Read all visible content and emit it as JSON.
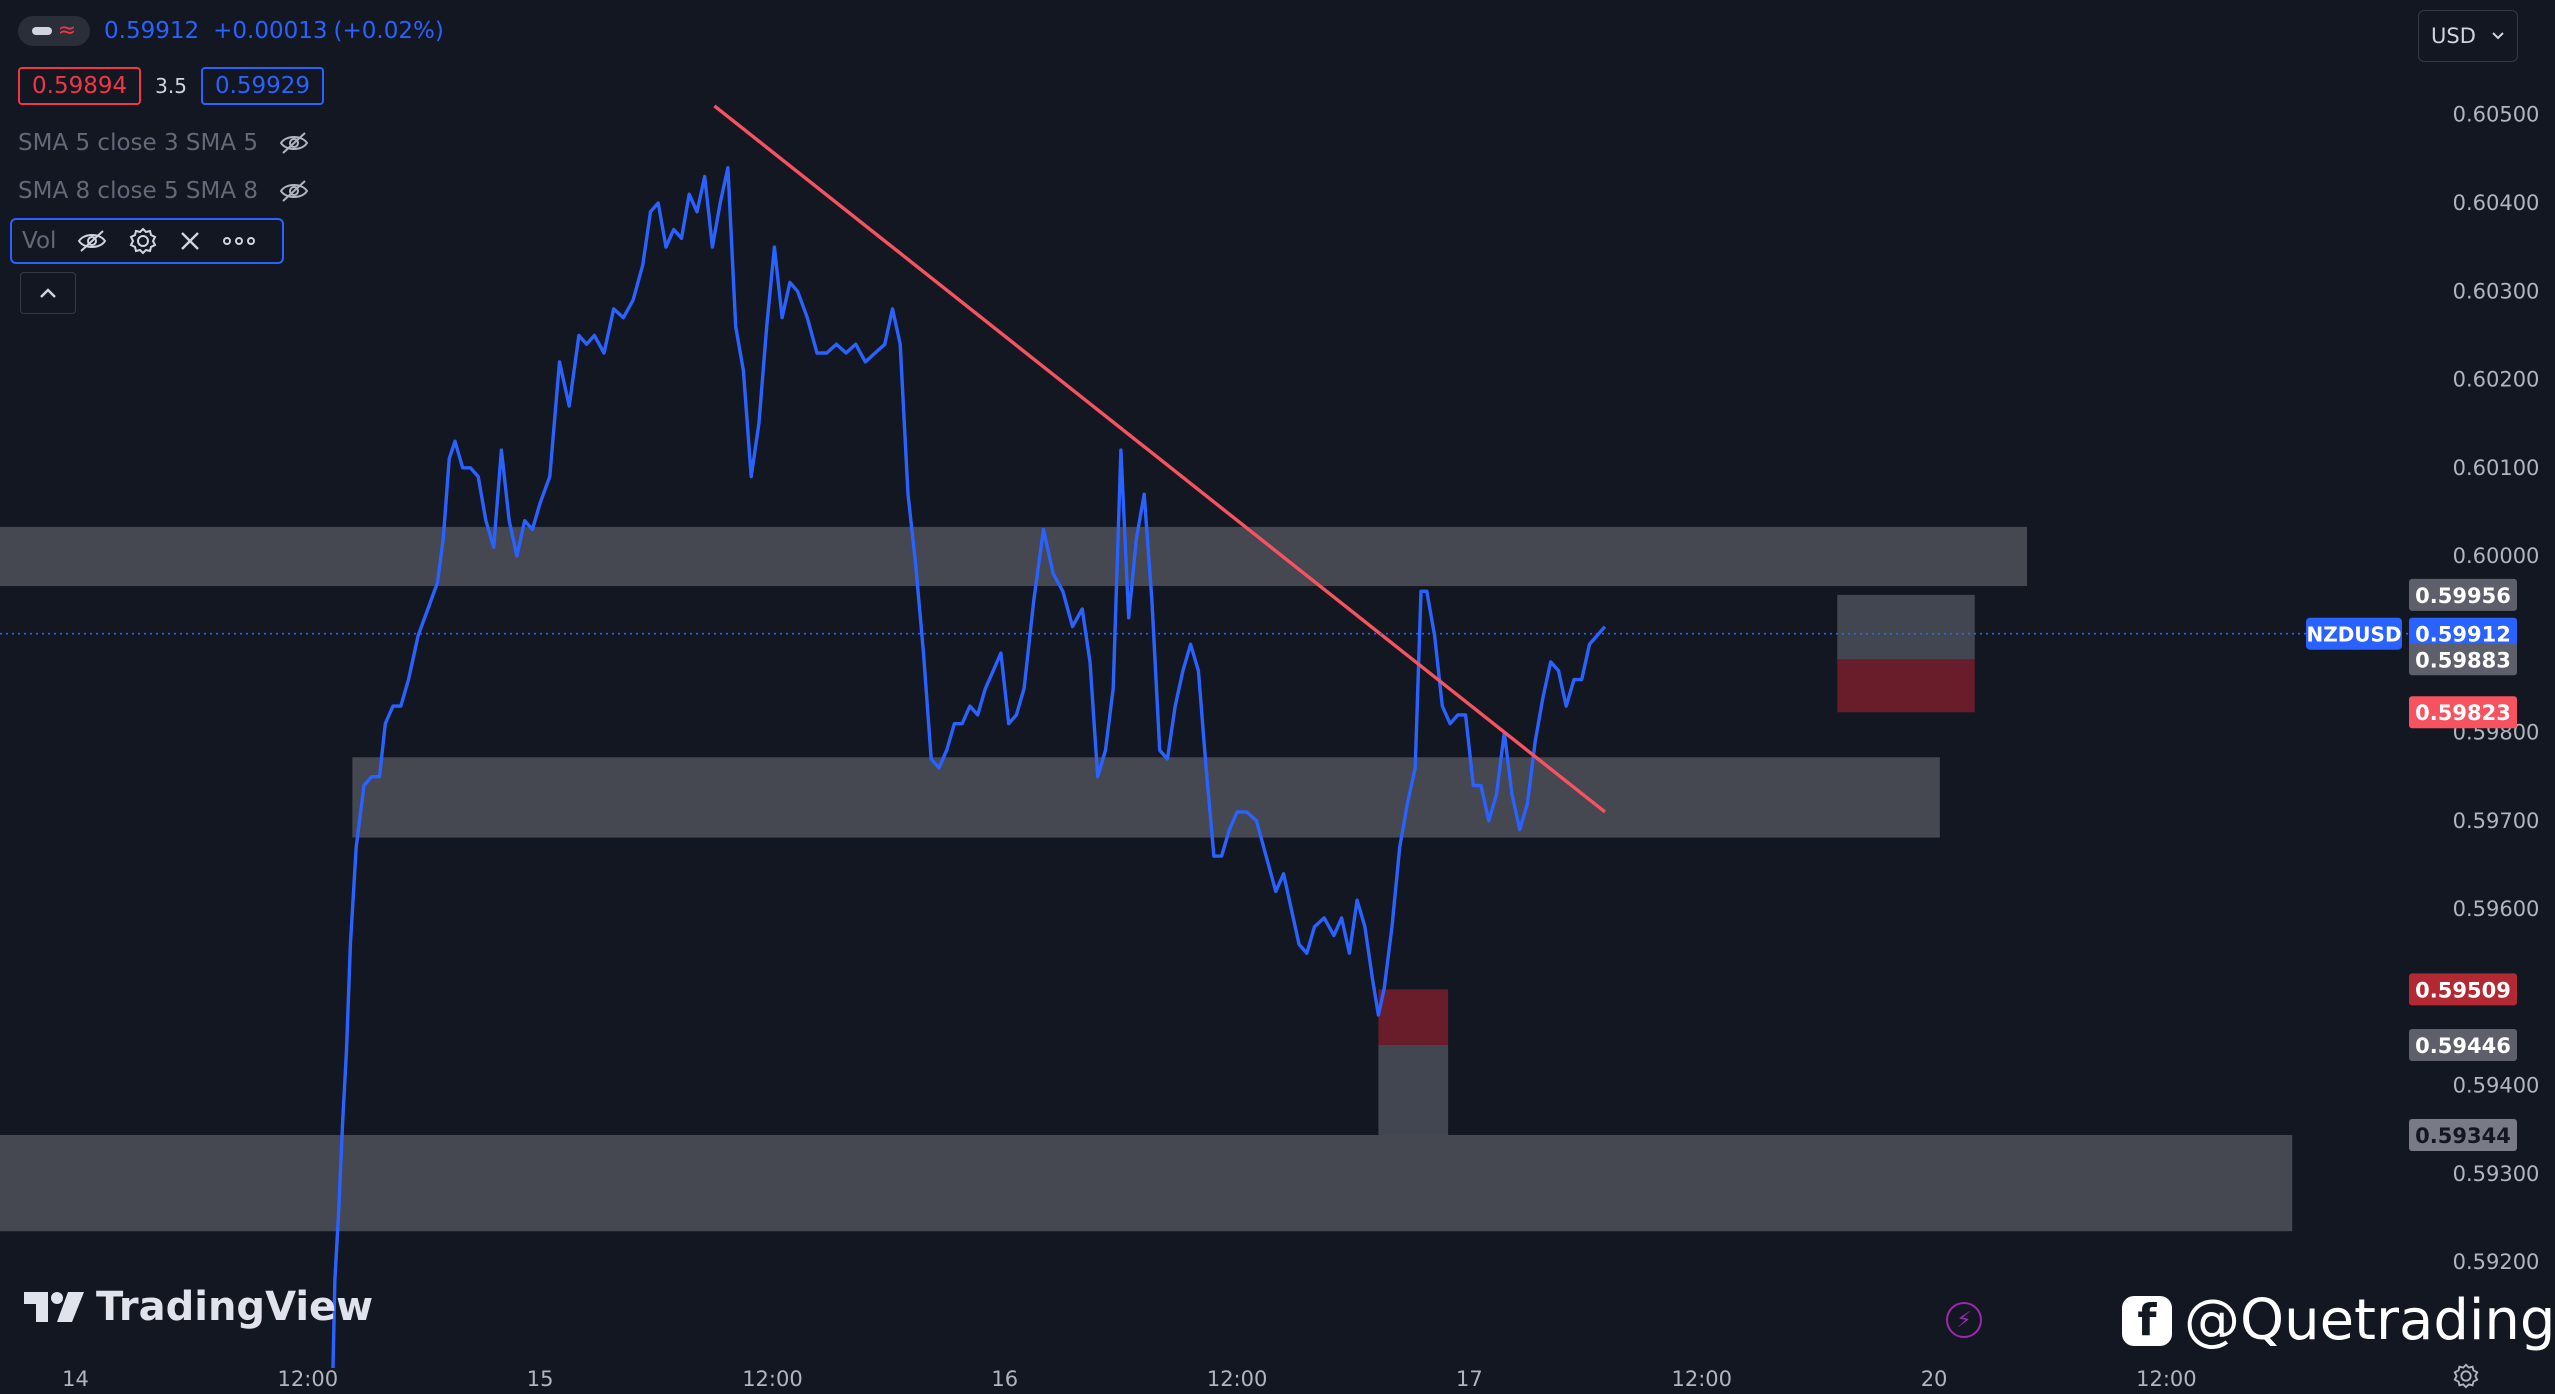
{
  "header": {
    "price": "0.59912",
    "change": "+0.00013",
    "change_pct": "(+0.02%)",
    "bid": "0.59894",
    "spread": "3.5",
    "ask": "0.59929"
  },
  "indicators": [
    {
      "label": "SMA 5 close 3 SMA 5",
      "icon": "eye-off-icon"
    },
    {
      "label": "SMA 8 close 5 SMA 8",
      "icon": "eye-off-icon"
    }
  ],
  "volume": {
    "label": "Vol"
  },
  "currency_selector": {
    "value": "USD"
  },
  "branding": {
    "logo_text": "TradingView",
    "watermark": "@Quetrading"
  },
  "colors": {
    "background": "#131722",
    "line": "#2962ff",
    "trendline": "#f7525f",
    "zone": "#4a4c56",
    "bid": "#f23645",
    "ask": "#2962ff"
  },
  "chart_data": {
    "type": "line",
    "symbol": "NZDUSD",
    "y_ticks": [
      "0.60500",
      "0.60400",
      "0.60300",
      "0.60200",
      "0.60100",
      "0.60000",
      "0.59800",
      "0.59700",
      "0.59600",
      "0.59400",
      "0.59300",
      "0.59200"
    ],
    "y_tick_values": [
      0.605,
      0.604,
      0.603,
      0.602,
      0.601,
      0.6,
      0.598,
      0.597,
      0.596,
      0.594,
      0.593,
      0.592
    ],
    "ylim": [
      0.5908,
      0.6063
    ],
    "x_ticks": [
      {
        "label": "14",
        "t": 0
      },
      {
        "label": "12:00",
        "t": 12
      },
      {
        "label": "15",
        "t": 24
      },
      {
        "label": "12:00",
        "t": 36
      },
      {
        "label": "16",
        "t": 48
      },
      {
        "label": "12:00",
        "t": 60
      },
      {
        "label": "17",
        "t": 72
      },
      {
        "label": "12:00",
        "t": 84
      },
      {
        "label": "20",
        "t": 96
      },
      {
        "label": "12:00",
        "t": 108
      }
    ],
    "xlim": [
      -3.9,
      121.1
    ],
    "series": [
      {
        "values": [
          [
            13.3,
            0.5908
          ],
          [
            13.4,
            0.5918
          ],
          [
            13.6,
            0.5926
          ],
          [
            13.8,
            0.5936
          ],
          [
            14.0,
            0.5944
          ],
          [
            14.2,
            0.5956
          ],
          [
            14.5,
            0.5967
          ],
          [
            14.9,
            0.5974
          ],
          [
            15.3,
            0.5975
          ],
          [
            15.7,
            0.5975
          ],
          [
            16.0,
            0.5981
          ],
          [
            16.4,
            0.5983
          ],
          [
            16.8,
            0.5983
          ],
          [
            17.2,
            0.5986
          ],
          [
            17.7,
            0.5991
          ],
          [
            18.2,
            0.5994
          ],
          [
            18.7,
            0.5997
          ],
          [
            19.0,
            0.6002
          ],
          [
            19.3,
            0.6011
          ],
          [
            19.6,
            0.6013
          ],
          [
            20.0,
            0.601
          ],
          [
            20.4,
            0.601
          ],
          [
            20.8,
            0.6009
          ],
          [
            21.2,
            0.6004
          ],
          [
            21.6,
            0.6001
          ],
          [
            22.0,
            0.6012
          ],
          [
            22.4,
            0.6004
          ],
          [
            22.8,
            0.6
          ],
          [
            23.2,
            0.6004
          ],
          [
            23.6,
            0.6003
          ],
          [
            24.0,
            0.6006
          ],
          [
            24.5,
            0.6009
          ],
          [
            25.0,
            0.6022
          ],
          [
            25.5,
            0.6017
          ],
          [
            26.0,
            0.6025
          ],
          [
            26.4,
            0.6024
          ],
          [
            26.8,
            0.6025
          ],
          [
            27.3,
            0.6023
          ],
          [
            27.8,
            0.6028
          ],
          [
            28.3,
            0.6027
          ],
          [
            28.8,
            0.6029
          ],
          [
            29.3,
            0.6033
          ],
          [
            29.7,
            0.6039
          ],
          [
            30.1,
            0.604
          ],
          [
            30.5,
            0.6035
          ],
          [
            30.9,
            0.6037
          ],
          [
            31.3,
            0.6036
          ],
          [
            31.7,
            0.6041
          ],
          [
            32.1,
            0.6039
          ],
          [
            32.5,
            0.6043
          ],
          [
            32.9,
            0.6035
          ],
          [
            33.3,
            0.604
          ],
          [
            33.7,
            0.6044
          ],
          [
            34.1,
            0.6026
          ],
          [
            34.5,
            0.6021
          ],
          [
            34.9,
            0.6009
          ],
          [
            35.3,
            0.6015
          ],
          [
            35.7,
            0.6026
          ],
          [
            36.1,
            0.6035
          ],
          [
            36.5,
            0.6027
          ],
          [
            36.9,
            0.6031
          ],
          [
            37.3,
            0.603
          ],
          [
            37.8,
            0.6027
          ],
          [
            38.3,
            0.6023
          ],
          [
            38.8,
            0.6023
          ],
          [
            39.3,
            0.6024
          ],
          [
            39.8,
            0.6023
          ],
          [
            40.3,
            0.6024
          ],
          [
            40.8,
            0.6022
          ],
          [
            41.3,
            0.6023
          ],
          [
            41.8,
            0.6024
          ],
          [
            42.2,
            0.6028
          ],
          [
            42.6,
            0.6024
          ],
          [
            43.0,
            0.6007
          ],
          [
            43.4,
            0.5999
          ],
          [
            43.8,
            0.5989
          ],
          [
            44.2,
            0.5977
          ],
          [
            44.6,
            0.5976
          ],
          [
            45.0,
            0.5978
          ],
          [
            45.4,
            0.5981
          ],
          [
            45.8,
            0.5981
          ],
          [
            46.2,
            0.5983
          ],
          [
            46.6,
            0.5982
          ],
          [
            47.0,
            0.5985
          ],
          [
            47.4,
            0.5987
          ],
          [
            47.8,
            0.5989
          ],
          [
            48.2,
            0.5981
          ],
          [
            48.6,
            0.5982
          ],
          [
            49.0,
            0.5985
          ],
          [
            49.5,
            0.5995
          ],
          [
            50.0,
            0.6003
          ],
          [
            50.5,
            0.5998
          ],
          [
            51.0,
            0.5996
          ],
          [
            51.5,
            0.5992
          ],
          [
            52.0,
            0.5994
          ],
          [
            52.4,
            0.5988
          ],
          [
            52.8,
            0.5975
          ],
          [
            53.2,
            0.5978
          ],
          [
            53.6,
            0.5985
          ],
          [
            54.0,
            0.6012
          ],
          [
            54.4,
            0.5993
          ],
          [
            54.8,
            0.6002
          ],
          [
            55.2,
            0.6007
          ],
          [
            55.6,
            0.5995
          ],
          [
            56.0,
            0.5978
          ],
          [
            56.4,
            0.5977
          ],
          [
            56.8,
            0.5983
          ],
          [
            57.2,
            0.5987
          ],
          [
            57.6,
            0.599
          ],
          [
            58.0,
            0.5987
          ],
          [
            58.4,
            0.5976
          ],
          [
            58.8,
            0.5966
          ],
          [
            59.2,
            0.5966
          ],
          [
            59.6,
            0.5969
          ],
          [
            60.0,
            0.5971
          ],
          [
            60.5,
            0.5971
          ],
          [
            61.0,
            0.597
          ],
          [
            61.5,
            0.5966
          ],
          [
            62.0,
            0.5962
          ],
          [
            62.4,
            0.5964
          ],
          [
            62.8,
            0.596
          ],
          [
            63.2,
            0.5956
          ],
          [
            63.6,
            0.5955
          ],
          [
            64.0,
            0.5958
          ],
          [
            64.5,
            0.5959
          ],
          [
            65.0,
            0.5957
          ],
          [
            65.4,
            0.5959
          ],
          [
            65.8,
            0.5955
          ],
          [
            66.2,
            0.5961
          ],
          [
            66.6,
            0.5958
          ],
          [
            67.0,
            0.5952
          ],
          [
            67.3,
            0.5948
          ],
          [
            67.6,
            0.5951
          ],
          [
            68.0,
            0.5958
          ],
          [
            68.4,
            0.5967
          ],
          [
            68.8,
            0.5972
          ],
          [
            69.2,
            0.5976
          ],
          [
            69.5,
            0.5996
          ],
          [
            69.8,
            0.5996
          ],
          [
            70.2,
            0.5991
          ],
          [
            70.6,
            0.5983
          ],
          [
            71.0,
            0.5981
          ],
          [
            71.4,
            0.5982
          ],
          [
            71.8,
            0.5982
          ],
          [
            72.2,
            0.5974
          ],
          [
            72.6,
            0.5974
          ],
          [
            73.0,
            0.597
          ],
          [
            73.4,
            0.5973
          ],
          [
            73.8,
            0.598
          ],
          [
            74.2,
            0.5973
          ],
          [
            74.6,
            0.5969
          ],
          [
            75.0,
            0.5972
          ],
          [
            75.4,
            0.5979
          ],
          [
            75.8,
            0.5984
          ],
          [
            76.2,
            0.5988
          ],
          [
            76.6,
            0.5987
          ],
          [
            77.0,
            0.5983
          ],
          [
            77.4,
            0.5986
          ],
          [
            77.8,
            0.5986
          ],
          [
            78.2,
            0.599
          ],
          [
            78.6,
            0.5991
          ],
          [
            79.0,
            0.5992
          ]
        ]
      }
    ],
    "trendline": {
      "from": [
        33.0,
        0.6051
      ],
      "to": [
        79.0,
        0.5971
      ]
    },
    "zones": [
      {
        "t0": -3.9,
        "t1": 100.8,
        "y0": 0.59966,
        "y1": 0.60033
      },
      {
        "t0": 14.3,
        "t1": 96.3,
        "y0": 0.59681,
        "y1": 0.59772
      },
      {
        "t0": -3.9,
        "t1": 114.5,
        "y0": 0.59235,
        "y1": 0.59344
      }
    ],
    "positions": [
      {
        "t0": 67.3,
        "t1": 70.9,
        "entry": 0.59446,
        "stop": 0.59509,
        "target": 0.59344
      },
      {
        "t0": 91.0,
        "t1": 98.1,
        "entry": 0.59883,
        "stop": 0.59823,
        "target": 0.59956
      }
    ],
    "current_price": 0.59912,
    "price_labels": [
      {
        "text": "0.59956",
        "value": 0.59956,
        "kind": "target"
      },
      {
        "text": "0.59912",
        "value": 0.59912,
        "kind": "last"
      },
      {
        "text": "0.59883",
        "value": 0.59883,
        "kind": "target"
      },
      {
        "text": "0.59823",
        "value": 0.59823,
        "kind": "stop"
      },
      {
        "text": "0.59509",
        "value": 0.59509,
        "kind": "stop-dark"
      },
      {
        "text": "0.59446",
        "value": 0.59446,
        "kind": "target"
      },
      {
        "text": "0.59344",
        "value": 0.59344,
        "kind": "target-light"
      }
    ]
  }
}
